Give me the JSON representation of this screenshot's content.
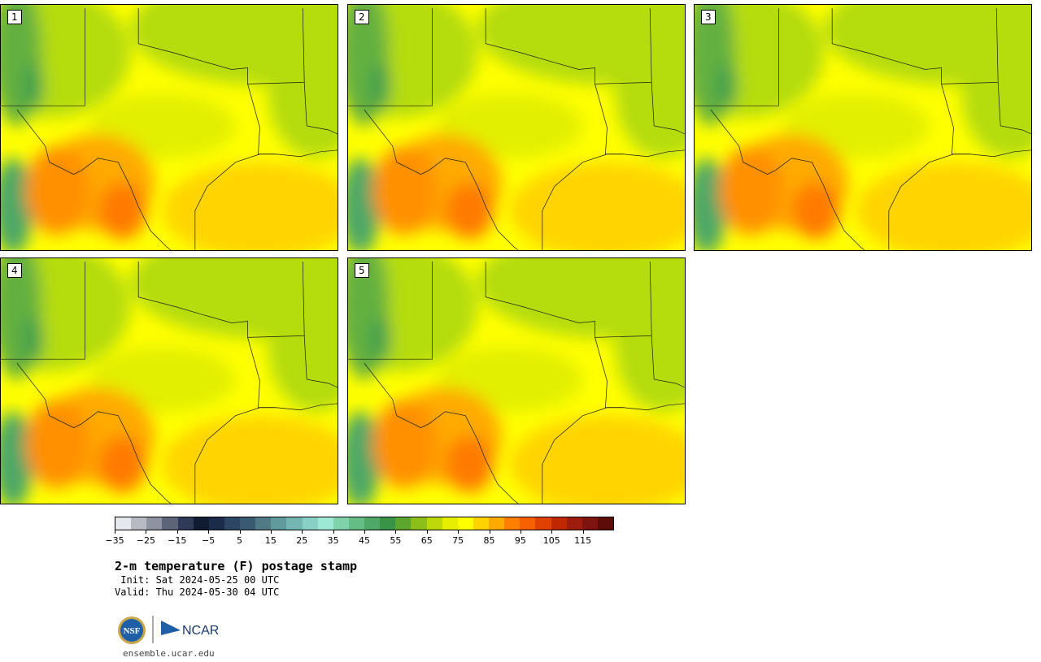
{
  "panels": [
    {
      "label": "1"
    },
    {
      "label": "2"
    },
    {
      "label": "3"
    },
    {
      "label": "4"
    },
    {
      "label": "5"
    }
  ],
  "colorbar": {
    "colors": [
      "#e5e8ec",
      "#b7bac3",
      "#8e93a1",
      "#5d6479",
      "#2e3a57",
      "#111c33",
      "#1b2b4a",
      "#2c4663",
      "#3a5a72",
      "#4f7a86",
      "#609a9d",
      "#74b6b2",
      "#88d0c5",
      "#9ee8d6",
      "#7fd2a9",
      "#63bd85",
      "#4ea866",
      "#3a9447",
      "#5ca62e",
      "#8cbf1a",
      "#bed90a",
      "#e6ef00",
      "#ffff00",
      "#ffd400",
      "#ffaa00",
      "#ff8000",
      "#f76000",
      "#e04000",
      "#c02800",
      "#9e1c0c",
      "#7e1410",
      "#5e0c0a"
    ],
    "ticks": [
      "−35",
      "−25",
      "−15",
      "−5",
      "5",
      "15",
      "25",
      "35",
      "45",
      "55",
      "65",
      "75",
      "85",
      "95",
      "105",
      "115"
    ]
  },
  "title": "2-m temperature (F) postage stamp",
  "init": " Init: Sat 2024-05-25 00 UTC",
  "valid": "Valid: Thu 2024-05-30 04 UTC",
  "logos": {
    "nsf": "NSF",
    "ncar": "NCAR"
  },
  "url": "ensemble.ucar.edu"
}
